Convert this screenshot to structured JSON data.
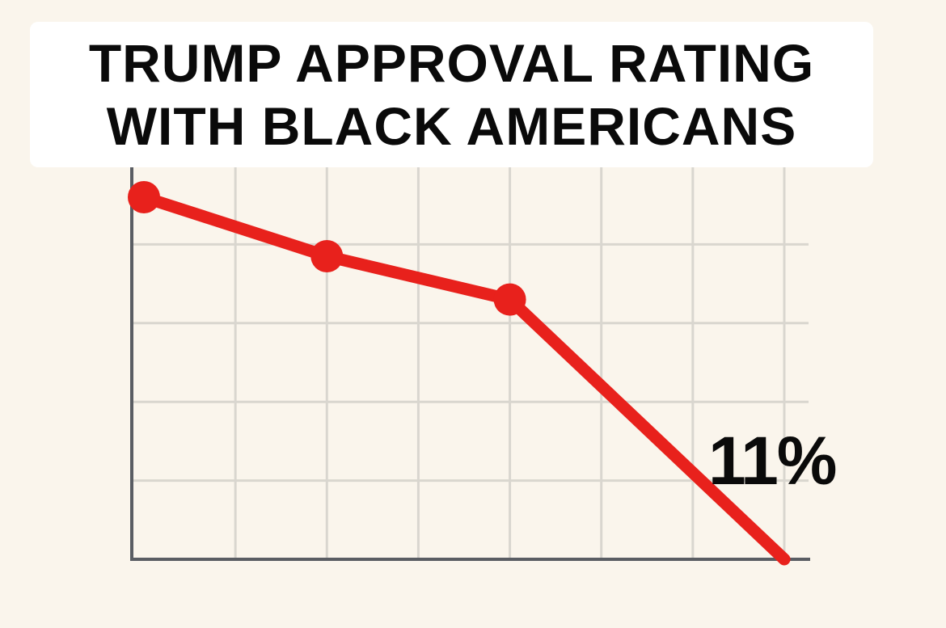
{
  "chart_data": {
    "type": "line",
    "title_lines": [
      "TRUMP APPROVAL RATING",
      "WITH BLACK AMERICANS"
    ],
    "x": [
      0,
      2,
      4,
      7
    ],
    "series": [
      {
        "values": [
          0.92,
          0.77,
          0.66,
          0.0
        ]
      }
    ],
    "xlim": [
      0,
      7
    ],
    "ylim": [
      0,
      1
    ],
    "grid": true,
    "grid_columns": 7,
    "grid_rows": 5,
    "annotation": "11%",
    "colors": {
      "line": "#e8211c",
      "grid": "#d9d6cf",
      "axis": "#5a5d63",
      "background": "#faf5ec",
      "title_box": "#ffffff",
      "text": "#0a0a0a"
    }
  }
}
